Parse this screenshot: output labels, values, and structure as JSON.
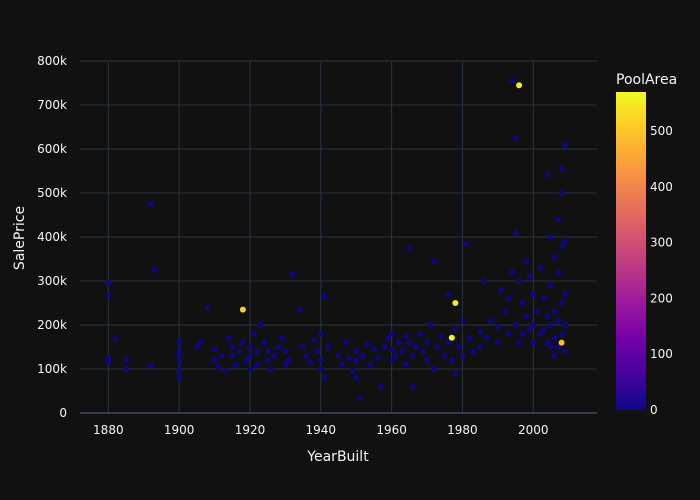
{
  "chart_data": {
    "type": "scatter",
    "title": "",
    "xlabel": "YearBuilt",
    "ylabel": "SalePrice",
    "xlim": [
      1872,
      2018
    ],
    "ylim": [
      0,
      800000
    ],
    "x_ticks": [
      1880,
      1900,
      1920,
      1940,
      1960,
      1980,
      2000
    ],
    "y_ticks": [
      0,
      100000,
      200000,
      300000,
      400000,
      500000,
      600000,
      700000,
      800000
    ],
    "y_tick_labels": [
      "0",
      "100k",
      "200k",
      "300k",
      "400k",
      "500k",
      "600k",
      "700k",
      "800k"
    ],
    "grid": true,
    "colorbar": {
      "title": "PoolArea",
      "range": [
        0,
        570
      ],
      "ticks": [
        0,
        100,
        200,
        300,
        400,
        500
      ],
      "tick_labels": [
        "0",
        "100",
        "200",
        "300",
        "400",
        "500"
      ],
      "colorscale": [
        "#0d0887",
        "#46039f",
        "#7201a8",
        "#9c179e",
        "#bd3786",
        "#d8576b",
        "#ed7953",
        "#fb9f3a",
        "#fdca26",
        "#f0f921"
      ]
    },
    "highlighted_points": [
      {
        "x": 1996,
        "y": 745000,
        "c": 555
      },
      {
        "x": 1918,
        "y": 235000,
        "c": 519
      },
      {
        "x": 1978,
        "y": 250000,
        "c": 555
      },
      {
        "x": 1977,
        "y": 171000,
        "c": 576
      },
      {
        "x": 2008,
        "y": 160000,
        "c": 480
      }
    ],
    "points": [
      [
        1880,
        295000
      ],
      [
        1880,
        268000
      ],
      [
        1880,
        125000
      ],
      [
        1880,
        115000
      ],
      [
        1882,
        168000
      ],
      [
        1885,
        122000
      ],
      [
        1885,
        100000
      ],
      [
        1892,
        475000
      ],
      [
        1893,
        325000
      ],
      [
        1892,
        108000
      ],
      [
        1900,
        160000
      ],
      [
        1900,
        140000
      ],
      [
        1900,
        115000
      ],
      [
        1900,
        95000
      ],
      [
        1900,
        80000
      ],
      [
        1900,
        130000
      ],
      [
        1905,
        150000
      ],
      [
        1906,
        160000
      ],
      [
        1908,
        240000
      ],
      [
        1910,
        145000
      ],
      [
        1910,
        120000
      ],
      [
        1911,
        105000
      ],
      [
        1912,
        130000
      ],
      [
        1913,
        95000
      ],
      [
        1914,
        170000
      ],
      [
        1915,
        150000
      ],
      [
        1915,
        130000
      ],
      [
        1916,
        110000
      ],
      [
        1917,
        140000
      ],
      [
        1918,
        160000
      ],
      [
        1919,
        120000
      ],
      [
        1920,
        100000
      ],
      [
        1920,
        150000
      ],
      [
        1920,
        130000
      ],
      [
        1921,
        180000
      ],
      [
        1922,
        140000
      ],
      [
        1922,
        110000
      ],
      [
        1923,
        200000
      ],
      [
        1924,
        160000
      ],
      [
        1925,
        140000
      ],
      [
        1925,
        120000
      ],
      [
        1926,
        100000
      ],
      [
        1927,
        130000
      ],
      [
        1928,
        150000
      ],
      [
        1929,
        170000
      ],
      [
        1930,
        140000
      ],
      [
        1930,
        110000
      ],
      [
        1931,
        120000
      ],
      [
        1932,
        315000
      ],
      [
        1934,
        235000
      ],
      [
        1935,
        150000
      ],
      [
        1936,
        130000
      ],
      [
        1937,
        115000
      ],
      [
        1938,
        165000
      ],
      [
        1939,
        140000
      ],
      [
        1940,
        180000
      ],
      [
        1940,
        120000
      ],
      [
        1940,
        100000
      ],
      [
        1941,
        265000
      ],
      [
        1941,
        80000
      ],
      [
        1942,
        150000
      ],
      [
        1945,
        130000
      ],
      [
        1946,
        110000
      ],
      [
        1947,
        160000
      ],
      [
        1948,
        125000
      ],
      [
        1949,
        95000
      ],
      [
        1950,
        140000
      ],
      [
        1950,
        120000
      ],
      [
        1950,
        80000
      ],
      [
        1951,
        35000
      ],
      [
        1952,
        130000
      ],
      [
        1953,
        155000
      ],
      [
        1954,
        110000
      ],
      [
        1955,
        145000
      ],
      [
        1956,
        125000
      ],
      [
        1957,
        60000
      ],
      [
        1958,
        150000
      ],
      [
        1959,
        170000
      ],
      [
        1960,
        180000
      ],
      [
        1960,
        145000
      ],
      [
        1960,
        120000
      ],
      [
        1961,
        130000
      ],
      [
        1962,
        160000
      ],
      [
        1963,
        140000
      ],
      [
        1964,
        175000
      ],
      [
        1964,
        110000
      ],
      [
        1965,
        375000
      ],
      [
        1965,
        160000
      ],
      [
        1966,
        130000
      ],
      [
        1966,
        60000
      ],
      [
        1967,
        150000
      ],
      [
        1968,
        180000
      ],
      [
        1969,
        140000
      ],
      [
        1970,
        160000
      ],
      [
        1970,
        120000
      ],
      [
        1971,
        200000
      ],
      [
        1972,
        345000
      ],
      [
        1972,
        100000
      ],
      [
        1973,
        150000
      ],
      [
        1974,
        175000
      ],
      [
        1975,
        130000
      ],
      [
        1976,
        270000
      ],
      [
        1976,
        160000
      ],
      [
        1977,
        120000
      ],
      [
        1978,
        190000
      ],
      [
        1978,
        90000
      ],
      [
        1979,
        150000
      ],
      [
        1980,
        210000
      ],
      [
        1980,
        130000
      ],
      [
        1981,
        385000
      ],
      [
        1982,
        170000
      ],
      [
        1983,
        140000
      ],
      [
        1985,
        185000
      ],
      [
        1985,
        150000
      ],
      [
        1986,
        300000
      ],
      [
        1987,
        170000
      ],
      [
        1988,
        210000
      ],
      [
        1990,
        195000
      ],
      [
        1990,
        160000
      ],
      [
        1991,
        280000
      ],
      [
        1992,
        230000
      ],
      [
        1993,
        260000
      ],
      [
        1993,
        180000
      ],
      [
        1994,
        755000
      ],
      [
        1994,
        320000
      ],
      [
        1995,
        625000
      ],
      [
        1995,
        410000
      ],
      [
        1995,
        200000
      ],
      [
        1996,
        300000
      ],
      [
        1996,
        160000
      ],
      [
        1997,
        250000
      ],
      [
        1997,
        180000
      ],
      [
        1998,
        345000
      ],
      [
        1998,
        220000
      ],
      [
        1999,
        310000
      ],
      [
        1999,
        190000
      ],
      [
        2000,
        270000
      ],
      [
        2000,
        200000
      ],
      [
        2000,
        160000
      ],
      [
        2001,
        230000
      ],
      [
        2002,
        330000
      ],
      [
        2002,
        180000
      ],
      [
        2003,
        260000
      ],
      [
        2003,
        190000
      ],
      [
        2004,
        540000
      ],
      [
        2004,
        220000
      ],
      [
        2004,
        160000
      ],
      [
        2005,
        400000
      ],
      [
        2005,
        290000
      ],
      [
        2005,
        200000
      ],
      [
        2005,
        150000
      ],
      [
        2006,
        355000
      ],
      [
        2006,
        230000
      ],
      [
        2006,
        170000
      ],
      [
        2006,
        130000
      ],
      [
        2007,
        440000
      ],
      [
        2007,
        320000
      ],
      [
        2007,
        210000
      ],
      [
        2007,
        150000
      ],
      [
        2008,
        555000
      ],
      [
        2008,
        500000
      ],
      [
        2008,
        380000
      ],
      [
        2008,
        250000
      ],
      [
        2008,
        180000
      ],
      [
        2009,
        610000
      ],
      [
        2009,
        390000
      ],
      [
        2009,
        270000
      ],
      [
        2009,
        200000
      ],
      [
        2009,
        140000
      ]
    ]
  }
}
